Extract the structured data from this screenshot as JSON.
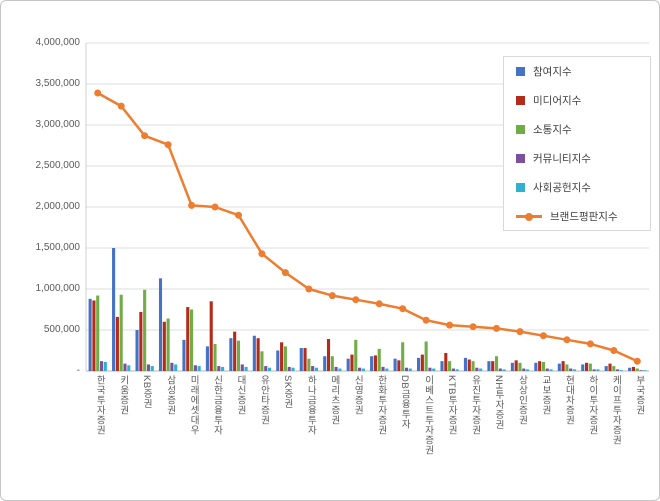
{
  "chart_data": {
    "type": "bar+line",
    "title": "",
    "categories": [
      "한국투자증권",
      "키움증권",
      "KB증권",
      "삼성증권",
      "미래에셋대우",
      "신한금융투자",
      "대신증권",
      "유안타증권",
      "SK증권",
      "하나금융투자",
      "메리츠증권",
      "신영증권",
      "한화투자증권",
      "DB금융투자",
      "이베스트투자증권",
      "KTB투자증권",
      "유진투자증권",
      "NH투자증권",
      "상상인증권",
      "교보증권",
      "현대차증권",
      "하이투자증권",
      "케이프투자증권",
      "부국증권"
    ],
    "series": [
      {
        "name": "참여지수",
        "type": "bar",
        "color": "#4472C4",
        "values": [
          880000,
          1500000,
          500000,
          1130000,
          380000,
          300000,
          400000,
          430000,
          250000,
          280000,
          180000,
          150000,
          180000,
          150000,
          160000,
          120000,
          160000,
          120000,
          100000,
          100000,
          90000,
          80000,
          60000,
          40000
        ]
      },
      {
        "name": "미디어지수",
        "type": "bar",
        "color": "#B52B1B",
        "values": [
          860000,
          660000,
          720000,
          600000,
          780000,
          850000,
          480000,
          400000,
          350000,
          280000,
          390000,
          200000,
          190000,
          130000,
          200000,
          220000,
          140000,
          120000,
          130000,
          120000,
          120000,
          100000,
          90000,
          50000
        ]
      },
      {
        "name": "소통지수",
        "type": "bar",
        "color": "#70AD47",
        "values": [
          920000,
          930000,
          990000,
          640000,
          750000,
          330000,
          370000,
          240000,
          300000,
          150000,
          180000,
          380000,
          270000,
          350000,
          360000,
          120000,
          120000,
          180000,
          100000,
          110000,
          80000,
          90000,
          60000,
          30000
        ]
      },
      {
        "name": "커뮤니티지수",
        "type": "bar",
        "color": "#7B519D",
        "values": [
          120000,
          90000,
          80000,
          100000,
          70000,
          60000,
          80000,
          60000,
          50000,
          60000,
          50000,
          40000,
          50000,
          40000,
          40000,
          30000,
          40000,
          30000,
          30000,
          30000,
          30000,
          20000,
          20000,
          10000
        ]
      },
      {
        "name": "사회공헌지수",
        "type": "bar",
        "color": "#31B0CF",
        "values": [
          110000,
          70000,
          60000,
          80000,
          60000,
          50000,
          50000,
          40000,
          40000,
          40000,
          30000,
          30000,
          30000,
          30000,
          30000,
          20000,
          30000,
          20000,
          20000,
          20000,
          20000,
          20000,
          10000,
          10000
        ]
      }
    ],
    "line_series": {
      "name": "브랜드평판지수",
      "type": "line",
      "color": "#ED7D31",
      "values": [
        3390000,
        3230000,
        2870000,
        2760000,
        2020000,
        2000000,
        1900000,
        1430000,
        1200000,
        1000000,
        920000,
        870000,
        820000,
        760000,
        620000,
        560000,
        540000,
        520000,
        480000,
        430000,
        380000,
        330000,
        250000,
        120000
      ]
    },
    "ylim": [
      0,
      4000000
    ],
    "ytick_step": 500000,
    "ytick_labels": [
      "-",
      "500,000",
      "1,000,000",
      "1,500,000",
      "2,000,000",
      "2,500,000",
      "3,000,000",
      "3,500,000",
      "4,000,000"
    ],
    "grid": true,
    "legend_position": "inside-top-right"
  }
}
